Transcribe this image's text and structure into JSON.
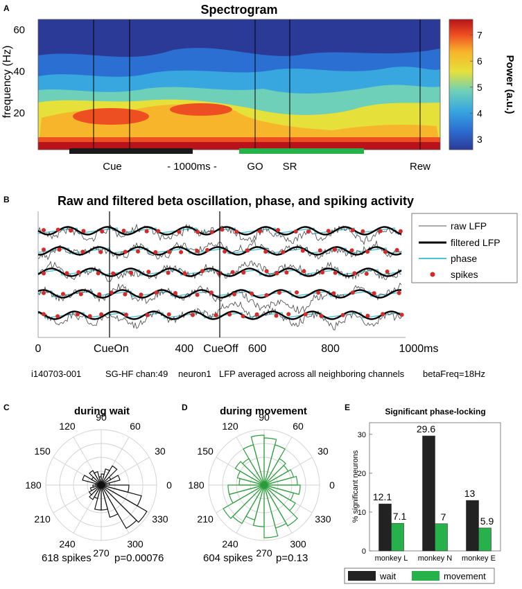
{
  "panel_labels": {
    "a": "A",
    "b": "B",
    "c": "C",
    "d": "D",
    "e": "E"
  },
  "chart_data": [
    {
      "type": "heatmap",
      "title": "Spectrogram",
      "ylabel": "frequency (Hz)",
      "yticks": [
        "20",
        "40",
        "60"
      ],
      "colorbar": {
        "label": "Power (a.u.)",
        "ticks": [
          "3",
          "4",
          "5",
          "6",
          "7"
        ],
        "range": [
          2.6,
          7.6
        ]
      },
      "events": [
        "Cue",
        "- 1000ms -",
        "GO",
        "SR",
        "Rew"
      ],
      "bands": [
        {
          "name": "wait",
          "color": "#1a1a1a"
        },
        {
          "name": "movement",
          "color": "#27b14a"
        }
      ]
    },
    {
      "type": "line",
      "title": "Raw and filtered beta oscillation, phase, and spiking activity",
      "xticks": [
        "0",
        "CueOn",
        "400",
        "CueOff",
        "600",
        "800",
        "1000ms"
      ],
      "xtick_values": [
        0,
        200,
        400,
        500,
        600,
        800,
        1000
      ],
      "trials": 5,
      "legend": [
        "raw LFP",
        "filtered LFP",
        "phase",
        "spikes"
      ],
      "caption": {
        "id": "i140703-001",
        "site": "SG-HF chan:49",
        "neuron": "neuron1",
        "lfp": "LFP averaged across all neighboring channels",
        "freq": "betaFreq=18Hz"
      }
    },
    {
      "type": "polar-histogram",
      "title": "during wait",
      "angles": [
        "90",
        "60",
        "30",
        "0",
        "330",
        "300",
        "270",
        "240",
        "210",
        "180",
        "150",
        "120"
      ],
      "color": "#111111",
      "bin_width_deg": 15,
      "counts": [
        0.15,
        0.35,
        0.2,
        0.4,
        0.3,
        0.2,
        0.15,
        0.25,
        0.3,
        0.2,
        0.35,
        0.1,
        0.15,
        0.2,
        0.25,
        0.3,
        0.25,
        0.45,
        0.45,
        0.6,
        0.9,
        0.95,
        0.75,
        0.5
      ],
      "spikes_text": "618 spikes",
      "p_text": "p=0.00076"
    },
    {
      "type": "polar-histogram",
      "title": "during movement",
      "angles": [
        "90",
        "60",
        "30",
        "0",
        "330",
        "300",
        "270",
        "240",
        "210",
        "180",
        "150",
        "120"
      ],
      "color": "#2a9d3a",
      "bin_width_deg": 15,
      "counts": [
        0.6,
        0.55,
        0.5,
        0.55,
        0.75,
        0.85,
        0.9,
        0.75,
        0.55,
        0.6,
        0.5,
        0.45,
        0.65,
        0.65,
        0.85,
        0.8,
        0.65,
        0.75,
        0.95,
        0.8,
        0.85,
        0.65,
        0.55,
        0.65
      ],
      "spikes_text": "604 spikes",
      "p_text": "p=0.13"
    },
    {
      "type": "bar",
      "title": "Significant phase-locking",
      "ylabel": "% significant neurons",
      "categories": [
        "monkey L",
        "monkey N",
        "monkey E"
      ],
      "series": [
        {
          "name": "wait",
          "color": "#222222",
          "values": [
            12.1,
            29.6,
            13
          ]
        },
        {
          "name": "movement",
          "color": "#27b14a",
          "values": [
            7.1,
            7,
            5.9
          ]
        }
      ],
      "value_labels": [
        [
          "12.1",
          "29.6",
          "13"
        ],
        [
          "7.1",
          "7",
          "5.9"
        ]
      ],
      "yticks": [
        "0",
        "10",
        "20",
        "30"
      ],
      "ylim": [
        0,
        33
      ]
    }
  ]
}
